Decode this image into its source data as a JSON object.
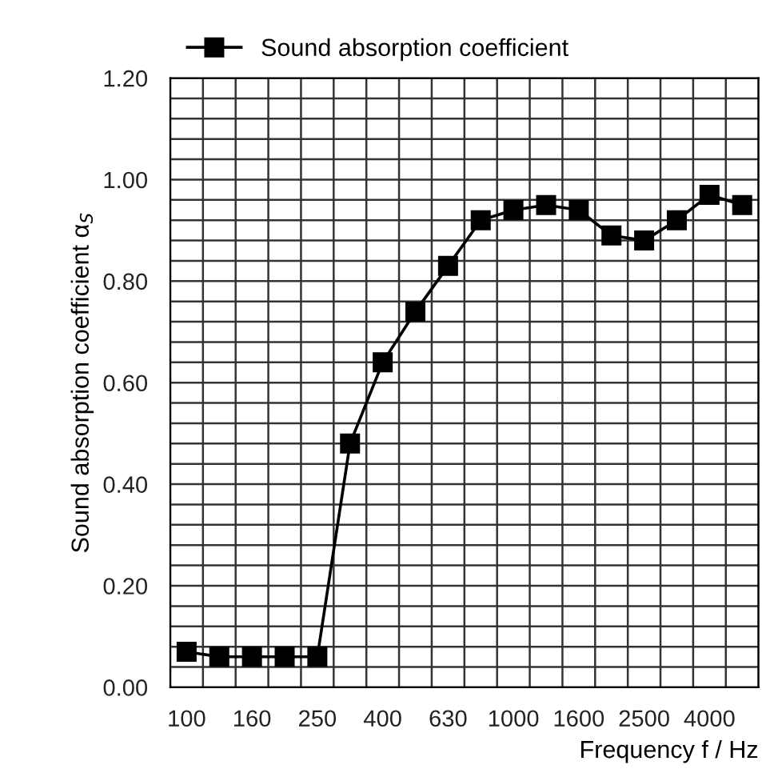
{
  "chart_data": {
    "type": "line",
    "categories": [
      "100",
      null,
      "160",
      null,
      "250",
      null,
      "400",
      null,
      "630",
      null,
      "1000",
      null,
      "1600",
      null,
      "2500",
      null,
      "4000",
      null
    ],
    "series": [
      {
        "name": "Sound absorption coefficient",
        "color": "#000000",
        "values": [
          0.07,
          0.06,
          0.06,
          0.06,
          0.06,
          0.48,
          0.64,
          0.74,
          0.83,
          0.92,
          0.94,
          0.95,
          0.94,
          0.89,
          0.88,
          0.92,
          0.97,
          0.95
        ]
      }
    ],
    "xlabel": "Frequency f / Hz",
    "ylabel": "Sound absorption coefficient α$_{S}$",
    "ylim": [
      0,
      1.2
    ],
    "yticks": [
      {
        "value": 0,
        "label": "0.00"
      },
      {
        "value": 0.04,
        "label": null
      },
      {
        "value": 0.08,
        "label": null
      },
      {
        "value": 0.12,
        "label": null
      },
      {
        "value": 0.16,
        "label": null
      },
      {
        "value": 0.2,
        "label": "0.20"
      },
      {
        "value": 0.24,
        "label": null
      },
      {
        "value": 0.28,
        "label": null
      },
      {
        "value": 0.32,
        "label": null
      },
      {
        "value": 0.36,
        "label": null
      },
      {
        "value": 0.4,
        "label": "0.40"
      },
      {
        "value": 0.44,
        "label": null
      },
      {
        "value": 0.48,
        "label": null
      },
      {
        "value": 0.52,
        "label": null
      },
      {
        "value": 0.56,
        "label": null
      },
      {
        "value": 0.6,
        "label": "0.60"
      },
      {
        "value": 0.64,
        "label": null
      },
      {
        "value": 0.68,
        "label": null
      },
      {
        "value": 0.72,
        "label": null
      },
      {
        "value": 0.76,
        "label": null
      },
      {
        "value": 0.8,
        "label": "0.80"
      },
      {
        "value": 0.84,
        "label": null
      },
      {
        "value": 0.88,
        "label": null
      },
      {
        "value": 0.92,
        "label": null
      },
      {
        "value": 0.96,
        "label": null
      },
      {
        "value": 1.0,
        "label": "1.00"
      },
      {
        "value": 1.04,
        "label": null
      },
      {
        "value": 1.08,
        "label": null
      },
      {
        "value": 1.12,
        "label": null
      },
      {
        "value": 1.16,
        "label": null
      },
      {
        "value": 1.2,
        "label": "1.20"
      }
    ],
    "grid": true,
    "legend": "top",
    "marker": "square",
    "line_style": "solid"
  }
}
